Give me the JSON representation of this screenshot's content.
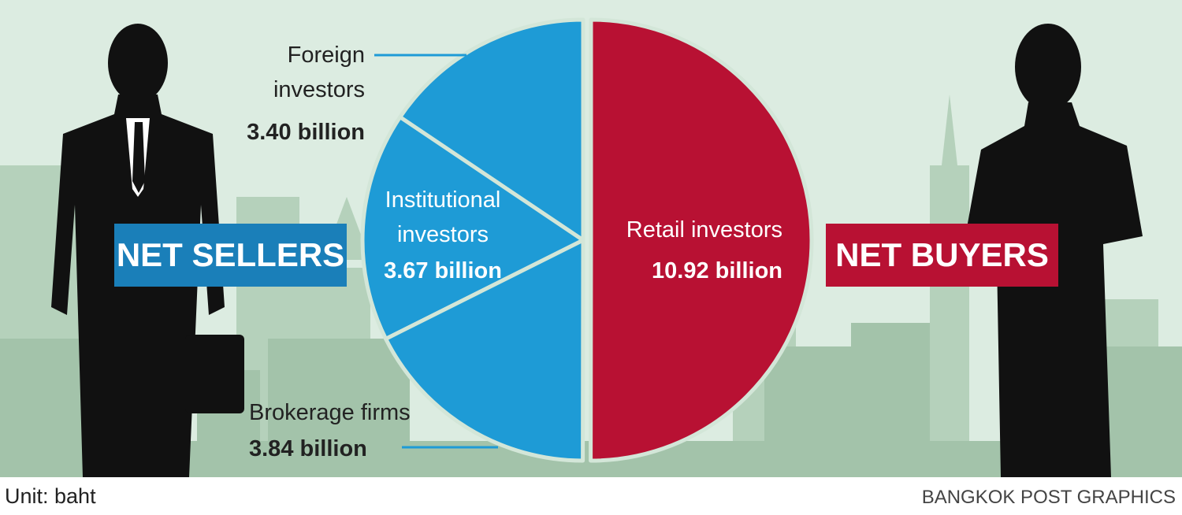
{
  "chart_data": {
    "type": "pie",
    "categories": [
      "Foreign investors",
      "Institutional investors",
      "Brokerage firms",
      "Retail investors"
    ],
    "values": [
      3.4,
      3.67,
      3.84,
      10.92
    ],
    "value_labels": [
      "3.40 billion",
      "3.67 billion",
      "3.84 billion",
      "10.92 billion"
    ],
    "colors": [
      "#1e9bd6",
      "#1e9bd6",
      "#1e9bd6",
      "#b81133"
    ],
    "sellers_label": "NET SELLERS",
    "buyers_label": "NET BUYERS",
    "unit": "Unit: baht",
    "credit": "BANGKOK POST GRAPHICS"
  }
}
